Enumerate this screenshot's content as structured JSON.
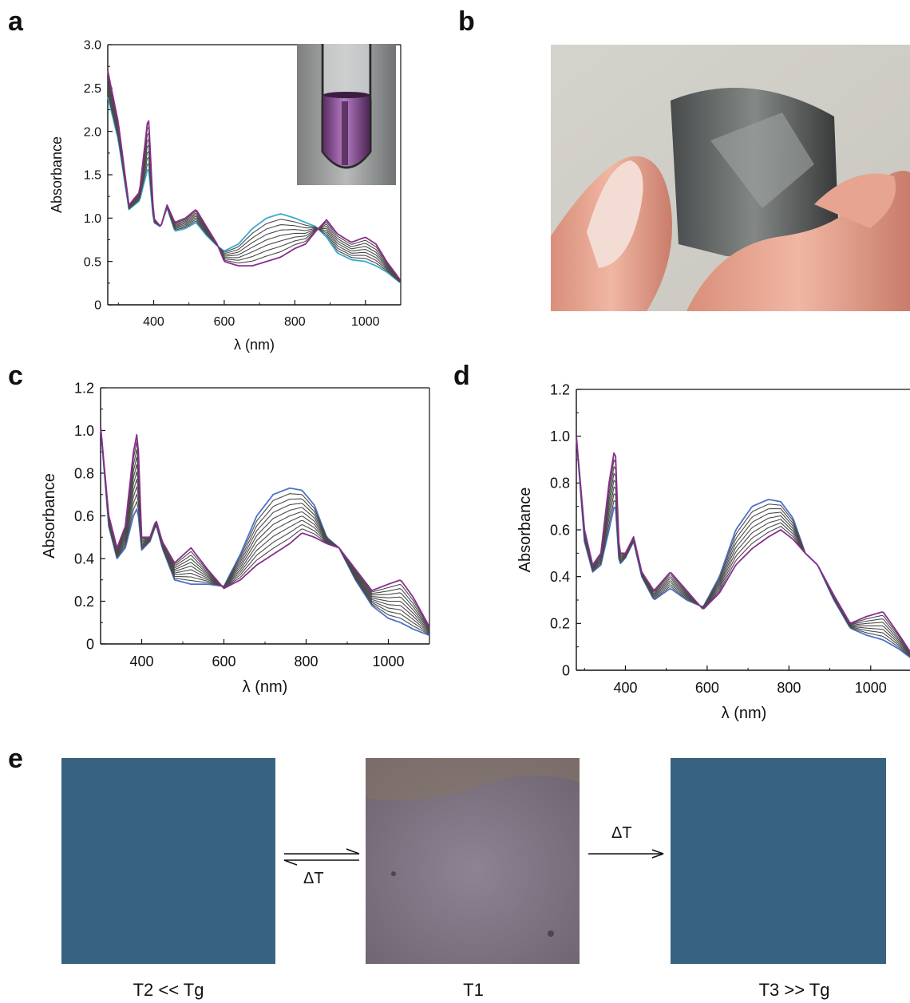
{
  "figure": {
    "panels": {
      "a": "a",
      "b": "b",
      "c": "c",
      "d": "d",
      "e": "e"
    },
    "colors": {
      "initial": "#3aa9cf",
      "final": "#8e2a8c",
      "intermediate": "#4a4a4a",
      "initial_c": "#4b72c8",
      "final_c": "#8a2d8e",
      "film_blue": "#36607c",
      "film_pink": "#8a7f8e"
    },
    "panel_e": {
      "labels": [
        "T2 << Tg",
        "T1",
        "T3 >> Tg"
      ],
      "arrow1_label": "ΔT",
      "arrow2_label": "ΔT"
    }
  },
  "chart_data": [
    {
      "panel": "a",
      "type": "line",
      "title": "",
      "xlabel": "λ (nm)",
      "ylabel": "Absorbance",
      "xlim": [
        270,
        1100
      ],
      "ylim": [
        0,
        3.0
      ],
      "xticks": [
        400,
        600,
        800,
        1000
      ],
      "yticks": [
        "0",
        "0.5",
        "1.0",
        "1.5",
        "2.0",
        "2.5",
        "3.0"
      ],
      "series_count": 9,
      "initial": {
        "x": [
          270,
          300,
          330,
          360,
          385,
          400,
          420,
          438,
          460,
          490,
          520,
          550,
          580,
          600,
          640,
          680,
          720,
          760,
          800,
          830,
          860,
          890,
          920,
          960,
          1000,
          1030,
          1060,
          1100
        ],
        "y": [
          2.4,
          1.9,
          1.1,
          1.2,
          1.6,
          0.95,
          0.9,
          1.12,
          0.85,
          0.88,
          0.95,
          0.8,
          0.68,
          0.62,
          0.7,
          0.88,
          1.0,
          1.05,
          1.0,
          0.95,
          0.9,
          0.78,
          0.6,
          0.52,
          0.5,
          0.45,
          0.38,
          0.25
        ]
      },
      "final": {
        "x": [
          270,
          300,
          330,
          360,
          385,
          400,
          420,
          438,
          460,
          490,
          520,
          550,
          580,
          600,
          640,
          680,
          720,
          760,
          800,
          830,
          860,
          890,
          920,
          960,
          1000,
          1030,
          1060,
          1100
        ],
        "y": [
          2.7,
          2.1,
          1.15,
          1.3,
          2.2,
          1.0,
          0.9,
          1.15,
          0.95,
          1.0,
          1.1,
          0.9,
          0.7,
          0.5,
          0.45,
          0.45,
          0.5,
          0.55,
          0.65,
          0.7,
          0.85,
          0.98,
          0.82,
          0.72,
          0.78,
          0.7,
          0.5,
          0.28
        ]
      }
    },
    {
      "panel": "c",
      "type": "line",
      "title": "",
      "xlabel": "λ (nm)",
      "ylabel": "Absorbance",
      "xlim": [
        300,
        1100
      ],
      "ylim": [
        0,
        1.2
      ],
      "xticks": [
        400,
        600,
        800,
        1000
      ],
      "yticks": [
        "0",
        "0.2",
        "0.4",
        "0.6",
        "0.8",
        "1.0",
        "1.2"
      ],
      "series_count": 11,
      "initial": {
        "x": [
          300,
          320,
          340,
          360,
          380,
          390,
          400,
          420,
          435,
          450,
          480,
          520,
          560,
          600,
          640,
          680,
          720,
          760,
          790,
          820,
          850,
          880,
          920,
          960,
          1000,
          1030,
          1060,
          1100
        ],
        "y": [
          1.02,
          0.55,
          0.4,
          0.45,
          0.6,
          0.64,
          0.44,
          0.48,
          0.56,
          0.45,
          0.3,
          0.28,
          0.28,
          0.27,
          0.42,
          0.6,
          0.7,
          0.73,
          0.72,
          0.65,
          0.5,
          0.45,
          0.3,
          0.18,
          0.12,
          0.1,
          0.07,
          0.04
        ]
      },
      "final": {
        "x": [
          300,
          320,
          340,
          360,
          380,
          390,
          400,
          420,
          435,
          450,
          480,
          520,
          560,
          600,
          640,
          680,
          720,
          760,
          790,
          820,
          850,
          880,
          920,
          960,
          1000,
          1030,
          1060,
          1100
        ],
        "y": [
          1.02,
          0.6,
          0.45,
          0.55,
          0.9,
          1.0,
          0.5,
          0.5,
          0.58,
          0.48,
          0.38,
          0.45,
          0.35,
          0.26,
          0.3,
          0.37,
          0.42,
          0.47,
          0.52,
          0.5,
          0.47,
          0.45,
          0.35,
          0.25,
          0.28,
          0.3,
          0.22,
          0.08
        ]
      }
    },
    {
      "panel": "d",
      "type": "line",
      "title": "",
      "xlabel": "λ (nm)",
      "ylabel": "Absorbance",
      "xlim": [
        280,
        1100
      ],
      "ylim": [
        0,
        1.2
      ],
      "xticks": [
        400,
        600,
        800,
        1000
      ],
      "yticks": [
        "0",
        "0.2",
        "0.4",
        "0.6",
        "0.8",
        "1.0",
        "1.2"
      ],
      "series_count": 9,
      "initial": {
        "x": [
          280,
          300,
          320,
          340,
          360,
          375,
          385,
          400,
          420,
          440,
          470,
          510,
          550,
          590,
          630,
          670,
          710,
          750,
          780,
          810,
          840,
          870,
          910,
          950,
          990,
          1030,
          1070,
          1100
        ],
        "y": [
          1.0,
          0.55,
          0.42,
          0.45,
          0.6,
          0.72,
          0.45,
          0.48,
          0.55,
          0.4,
          0.3,
          0.35,
          0.3,
          0.27,
          0.4,
          0.6,
          0.7,
          0.73,
          0.72,
          0.65,
          0.5,
          0.45,
          0.3,
          0.18,
          0.15,
          0.13,
          0.09,
          0.05
        ]
      },
      "final": {
        "x": [
          280,
          300,
          320,
          340,
          360,
          375,
          385,
          400,
          420,
          440,
          470,
          510,
          550,
          590,
          630,
          670,
          710,
          750,
          780,
          810,
          840,
          870,
          910,
          950,
          990,
          1030,
          1070,
          1100
        ],
        "y": [
          1.0,
          0.6,
          0.45,
          0.5,
          0.8,
          0.96,
          0.5,
          0.5,
          0.57,
          0.42,
          0.34,
          0.42,
          0.34,
          0.26,
          0.33,
          0.45,
          0.52,
          0.57,
          0.6,
          0.56,
          0.5,
          0.45,
          0.32,
          0.2,
          0.23,
          0.25,
          0.15,
          0.07
        ]
      }
    }
  ]
}
